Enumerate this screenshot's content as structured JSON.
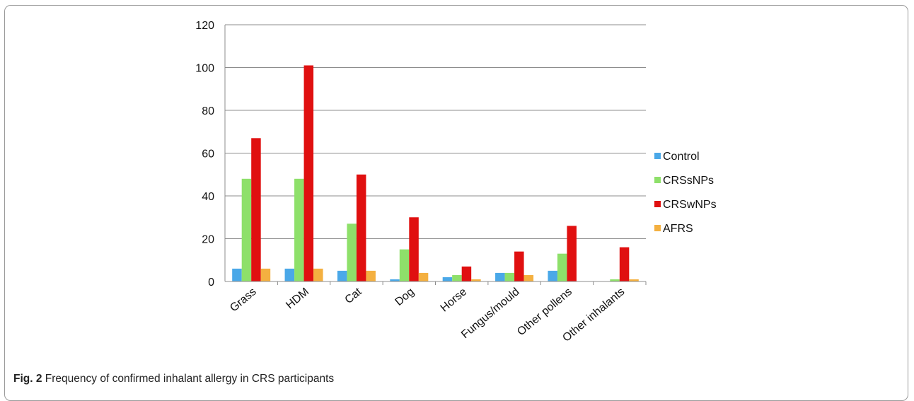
{
  "caption": {
    "label": "Fig. 2",
    "text": "Frequency of confirmed inhalant allergy in CRS participants"
  },
  "chart_data": {
    "type": "bar",
    "title": "",
    "xlabel": "",
    "ylabel": "",
    "ylim": [
      0,
      120
    ],
    "yticks": [
      0,
      20,
      40,
      60,
      80,
      100,
      120
    ],
    "grid": true,
    "legend_position": "right",
    "categories": [
      "Grass",
      "HDM",
      "Cat",
      "Dog",
      "Horse",
      "Fungus/mould",
      "Other pollens",
      "Other inhalants"
    ],
    "series": [
      {
        "name": "Control",
        "color": "#4aa8e8",
        "values": [
          6,
          6,
          5,
          1,
          2,
          4,
          5,
          0
        ]
      },
      {
        "name": "CRSsNPs",
        "color": "#8ee06a",
        "values": [
          48,
          48,
          27,
          15,
          3,
          4,
          13,
          1
        ]
      },
      {
        "name": "CRSwNPs",
        "color": "#e01010",
        "values": [
          67,
          101,
          50,
          30,
          7,
          14,
          26,
          16
        ]
      },
      {
        "name": "AFRS",
        "color": "#f4b040",
        "values": [
          6,
          6,
          5,
          4,
          1,
          3,
          0,
          1
        ]
      }
    ]
  }
}
